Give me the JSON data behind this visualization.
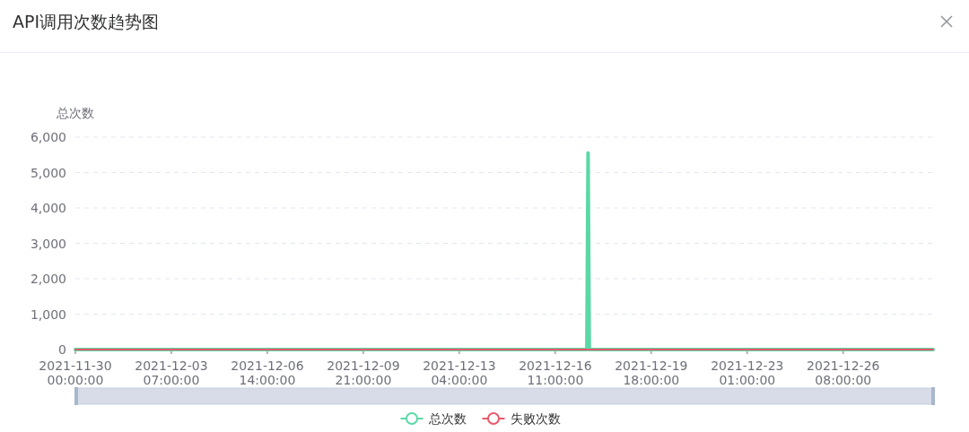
{
  "chart_data": {
    "type": "line",
    "title": "API调用次数趋势图",
    "ylabel": "总次数",
    "x": [
      "2021-11-30T00:00",
      "2021-12-17T13:00",
      "2021-12-17T14:00",
      "2021-12-17T15:00",
      "2021-12-29T10:00"
    ],
    "series": [
      {
        "name": "总次数",
        "color": "#5ad8a6",
        "values": [
          0,
          0,
          5550,
          0,
          0
        ]
      },
      {
        "name": "失败次数",
        "color": "#e8586a",
        "values": [
          0,
          0,
          0,
          0,
          0
        ]
      }
    ],
    "xlim": [
      "2021-11-30T00:00",
      "2021-12-29T10:00"
    ],
    "xticks": [
      {
        "value": "2021-11-30T00:00",
        "label": "2021-11-30 00:00:00"
      },
      {
        "value": "2021-12-03T07:00",
        "label": "2021-12-03 07:00:00"
      },
      {
        "value": "2021-12-06T14:00",
        "label": "2021-12-06 14:00:00"
      },
      {
        "value": "2021-12-09T21:00",
        "label": "2021-12-09 21:00:00"
      },
      {
        "value": "2021-12-13T04:00",
        "label": "2021-12-13 04:00:00"
      },
      {
        "value": "2021-12-16T11:00",
        "label": "2021-12-16 11:00:00"
      },
      {
        "value": "2021-12-19T18:00",
        "label": "2021-12-19 18:00:00"
      },
      {
        "value": "2021-12-23T01:00",
        "label": "2021-12-23 01:00:00"
      },
      {
        "value": "2021-12-26T08:00",
        "label": "2021-12-26 08:00:00"
      }
    ],
    "ylim": [
      0,
      6000
    ],
    "yticks": [
      0,
      {
        "value": 1000,
        "label": "1,000"
      },
      {
        "value": 2000,
        "label": "2,000"
      },
      {
        "value": 3000,
        "label": "3,000"
      },
      {
        "value": 4000,
        "label": "4,000"
      },
      {
        "value": 5000,
        "label": "5,000"
      },
      {
        "value": 6000,
        "label": "6,000"
      }
    ],
    "grid": "y",
    "legend": "bottom"
  }
}
